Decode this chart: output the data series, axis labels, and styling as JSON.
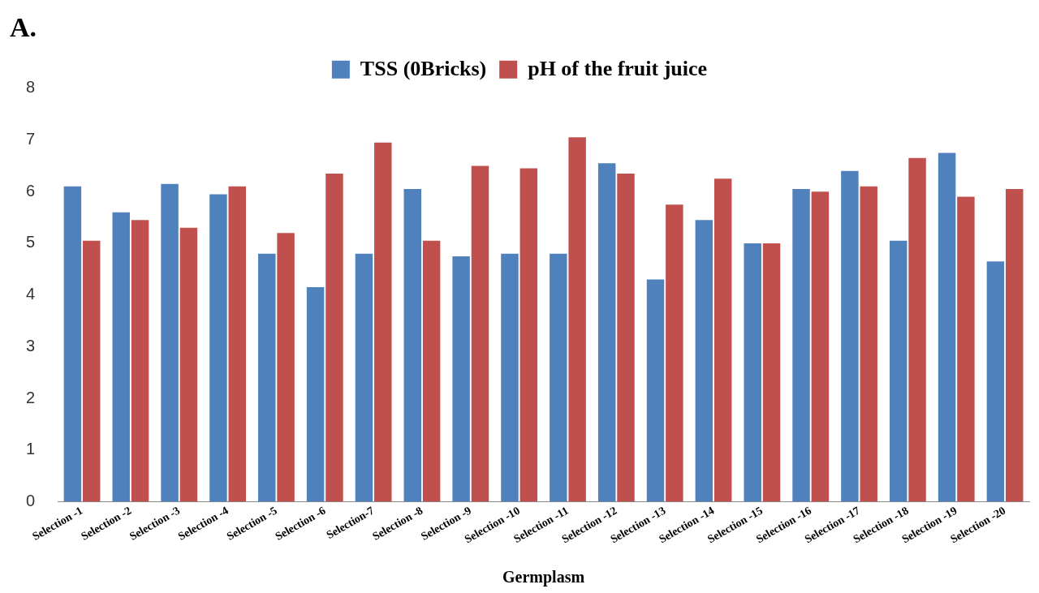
{
  "chart_data": {
    "type": "bar",
    "title": "A.",
    "xlabel": "Germplasm",
    "categories": [
      "Selection -1",
      "Selection -2",
      "Selection -3",
      "Selection -4",
      "Selection -5",
      "Selection -6",
      "Selection-7",
      "Selection -8",
      "Selection -9",
      "Selection -10",
      "Selection -11",
      "Selection -12",
      "Selection -13",
      "Selection -14",
      "Selection -15",
      "Selection -16",
      "Selection -17",
      "Selection -18",
      "Selection -19",
      "Selection -20"
    ],
    "series": [
      {
        "name": "TSS (0Bricks)",
        "color": "#4f81bd",
        "values": [
          6.1,
          5.6,
          6.15,
          5.95,
          4.8,
          4.15,
          4.8,
          6.05,
          4.75,
          4.8,
          4.8,
          6.55,
          4.3,
          5.45,
          5.0,
          6.05,
          6.4,
          5.05,
          6.75,
          4.65
        ]
      },
      {
        "name": "pH of the fruit juice",
        "color": "#c0504d",
        "values": [
          5.05,
          5.45,
          5.3,
          6.1,
          5.2,
          6.35,
          6.95,
          5.05,
          6.5,
          6.45,
          7.05,
          6.35,
          5.75,
          6.25,
          5.0,
          6.0,
          6.1,
          6.65,
          5.9,
          6.05
        ]
      }
    ],
    "ylim": [
      0,
      8
    ],
    "yticks": [
      0,
      1,
      2,
      3,
      4,
      5,
      6,
      7,
      8
    ],
    "grid": false,
    "legend": "top"
  }
}
